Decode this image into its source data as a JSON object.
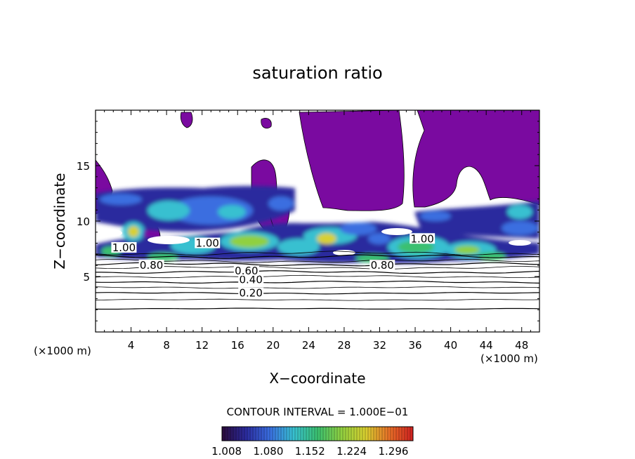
{
  "chart_data": {
    "type": "contour",
    "title": "saturation ratio",
    "xlabel": "X−coordinate",
    "ylabel": "Z−coordinate",
    "x_unit": "(×1000 m)",
    "xlim": [
      0,
      50
    ],
    "ylim": [
      0,
      20
    ],
    "xticks": [
      4,
      8,
      12,
      16,
      20,
      24,
      28,
      32,
      36,
      40,
      44,
      48
    ],
    "yticks": [
      5,
      10,
      15
    ],
    "contour_interval_text": "CONTOUR INTERVAL = 1.000E−01",
    "contour_labels": [
      {
        "text": "0.20",
        "x": 17.5,
        "z": 3.5
      },
      {
        "text": "0.40",
        "x": 17.5,
        "z": 4.7
      },
      {
        "text": "0.60",
        "x": 17.0,
        "z": 5.5
      },
      {
        "text": "0.80",
        "x": 6.3,
        "z": 6.0
      },
      {
        "text": "0.80",
        "x": 32.3,
        "z": 6.0
      },
      {
        "text": "1.00",
        "x": 3.2,
        "z": 7.6
      },
      {
        "text": "1.00",
        "x": 36.8,
        "z": 8.4
      },
      {
        "text": "1.00",
        "x": 12.6,
        "z": 8.0
      }
    ],
    "colorbar": {
      "ticks": [
        "1.008",
        "1.080",
        "1.152",
        "1.224",
        "1.296"
      ],
      "range": [
        1.0,
        1.33
      ],
      "colors": [
        "#2a0a3a",
        "#2b2b9e",
        "#3a6ee0",
        "#38c0d0",
        "#3ac070",
        "#90d040",
        "#d8d030",
        "#e87028",
        "#d02020"
      ]
    },
    "colors": {
      "supersat_fill": "#7a0aa0",
      "line": "#000000"
    }
  }
}
